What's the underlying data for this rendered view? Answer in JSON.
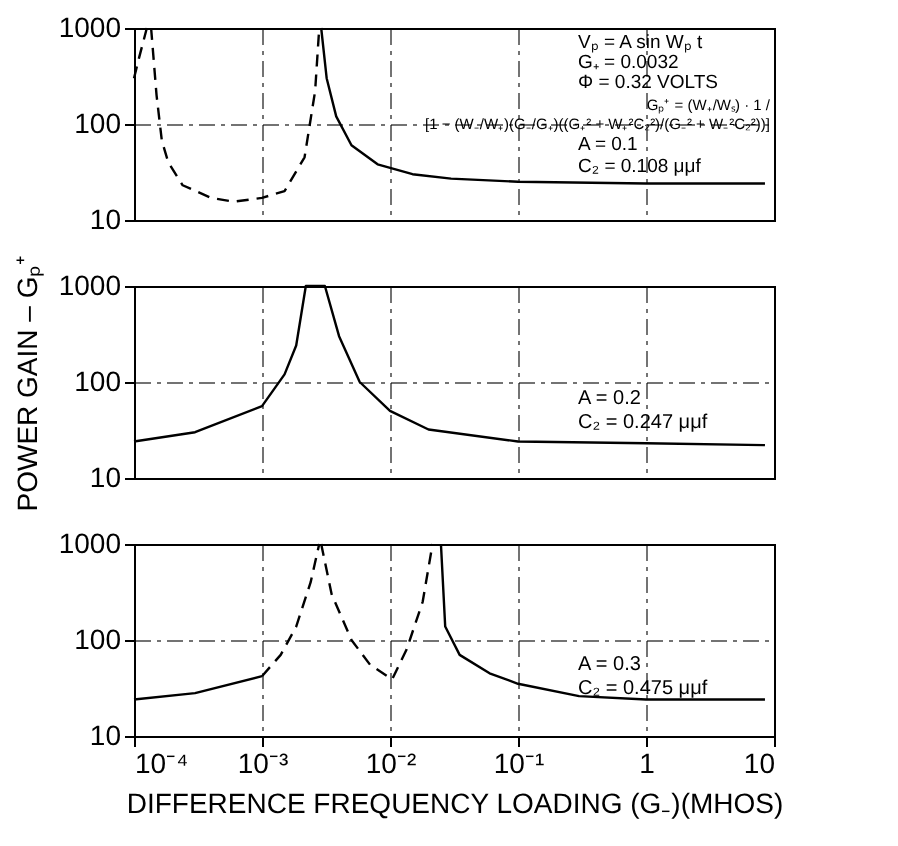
{
  "chart_data": [
    {
      "type": "line",
      "xlim": [
        0.0001,
        10
      ],
      "ylim": [
        10,
        1000
      ],
      "log": "xy",
      "grid": true,
      "tick_labels": "y",
      "xticks": [
        {
          "value": 0.0001,
          "label": null
        },
        {
          "value": 0.001,
          "label": null
        },
        {
          "value": 0.01,
          "label": null
        },
        {
          "value": 0.1,
          "label": null
        },
        {
          "value": 1,
          "label": null
        },
        {
          "value": 10,
          "label": null
        }
      ],
      "yticks": [
        10,
        100,
        1000
      ],
      "annotations": [
        "Vₚ = A sin Wₚ t",
        "G₊ = 0.0032",
        "Φ = 0.32 VOLTS",
        "Gₚ⁺ = (W₊/Wₛ) · 1 /\n[1 − (W₋/W₊)(G₋/G₊)((G₊² + W₊²C₂²)/(G₋² + W₋²C₂²))]",
        "A = 0.1",
        "C₂ = 0.108 μμf"
      ],
      "series": [
        {
          "color": "#000000",
          "line_style": "dashed",
          "x": [
            0.0001,
            0.00011,
            0.000126
          ],
          "values": [
            300,
            500,
            1000
          ]
        },
        {
          "color": "#000000",
          "line_style": "dashed",
          "x": [
            0.000136,
            0.00015,
            0.000165,
            0.000185,
            0.00024,
            0.0004,
            0.0006,
            0.001,
            0.0015,
            0.00215,
            0.0026,
            0.0028
          ],
          "values": [
            1000,
            200,
            67,
            40,
            23,
            17,
            15.5,
            17,
            20,
            45,
            220,
            1000
          ]
        },
        {
          "color": "#000000",
          "line_style": "solid",
          "x": [
            0.0029,
            0.0032,
            0.0038,
            0.005,
            0.008,
            0.015,
            0.03,
            0.1,
            1,
            8.5
          ],
          "values": [
            1000,
            300,
            120,
            60,
            38,
            30,
            27,
            25,
            24,
            24
          ]
        }
      ]
    },
    {
      "type": "line",
      "xlim": [
        0.0001,
        10
      ],
      "ylim": [
        10,
        1000
      ],
      "log": "xy",
      "grid": true,
      "tick_labels": "y",
      "ylabel": "POWER GAIN – Gₚ⁺",
      "xticks": [
        {
          "value": 0.0001,
          "label": null
        },
        {
          "value": 0.001,
          "label": null
        },
        {
          "value": 0.01,
          "label": null
        },
        {
          "value": 0.1,
          "label": null
        },
        {
          "value": 1,
          "label": null
        },
        {
          "value": 10,
          "label": null
        }
      ],
      "yticks": [
        10,
        100,
        1000
      ],
      "annotations": [
        "A = 0.2",
        "C₂ = 0.247 μμf"
      ],
      "series": [
        {
          "color": "#000000",
          "line_style": "solid",
          "x": [
            0.0001,
            0.0003,
            0.001,
            0.0015,
            0.00185,
            0.0022,
            0.0025,
            0.0031,
            0.004,
            0.0058,
            0.01,
            0.02,
            0.1,
            1,
            8.5
          ],
          "values": [
            24,
            30,
            56,
            120,
            240,
            1000,
            1000,
            1000,
            300,
            100,
            50,
            32,
            24,
            23,
            22
          ]
        }
      ]
    },
    {
      "type": "line",
      "xlim": [
        0.0001,
        10
      ],
      "ylim": [
        10,
        1000
      ],
      "log": "xy",
      "grid": true,
      "xlabel": "DIFFERENCE FREQUENCY LOADING (G₋)(MHOS)",
      "xticks": [
        {
          "value": 0.0001,
          "label": "10⁻⁴"
        },
        {
          "value": 0.001,
          "label": "10⁻³"
        },
        {
          "value": 0.01,
          "label": "10⁻²"
        },
        {
          "value": 0.1,
          "label": "10⁻¹"
        },
        {
          "value": 1,
          "label": "1"
        },
        {
          "value": 10,
          "label": "10"
        }
      ],
      "yticks": [
        10,
        100,
        1000
      ],
      "annotations": [
        "A = 0.3",
        "C₂ = 0.475 μμf"
      ],
      "series": [
        {
          "color": "#000000",
          "line_style": "solid",
          "x": [
            0.0001,
            0.0003,
            0.001
          ],
          "values": [
            24,
            28,
            42
          ]
        },
        {
          "color": "#000000",
          "line_style": "dashed",
          "x": [
            0.001,
            0.0014,
            0.00185,
            0.0024,
            0.0028
          ],
          "values": [
            42,
            70,
            138,
            400,
            1000
          ]
        },
        {
          "color": "#000000",
          "line_style": "dashed",
          "x": [
            0.0029,
            0.0035,
            0.005,
            0.007,
            0.0104,
            0.0135,
            0.018,
            0.0215
          ],
          "values": [
            1000,
            300,
            100,
            55,
            39,
            80,
            250,
            1000
          ]
        },
        {
          "color": "#000000",
          "line_style": "solid",
          "x": [
            0.025,
            0.027,
            0.035,
            0.06,
            0.1,
            0.3,
            1,
            8.5
          ],
          "values": [
            1000,
            138,
            70,
            45,
            35,
            26,
            24,
            24
          ]
        }
      ]
    }
  ]
}
